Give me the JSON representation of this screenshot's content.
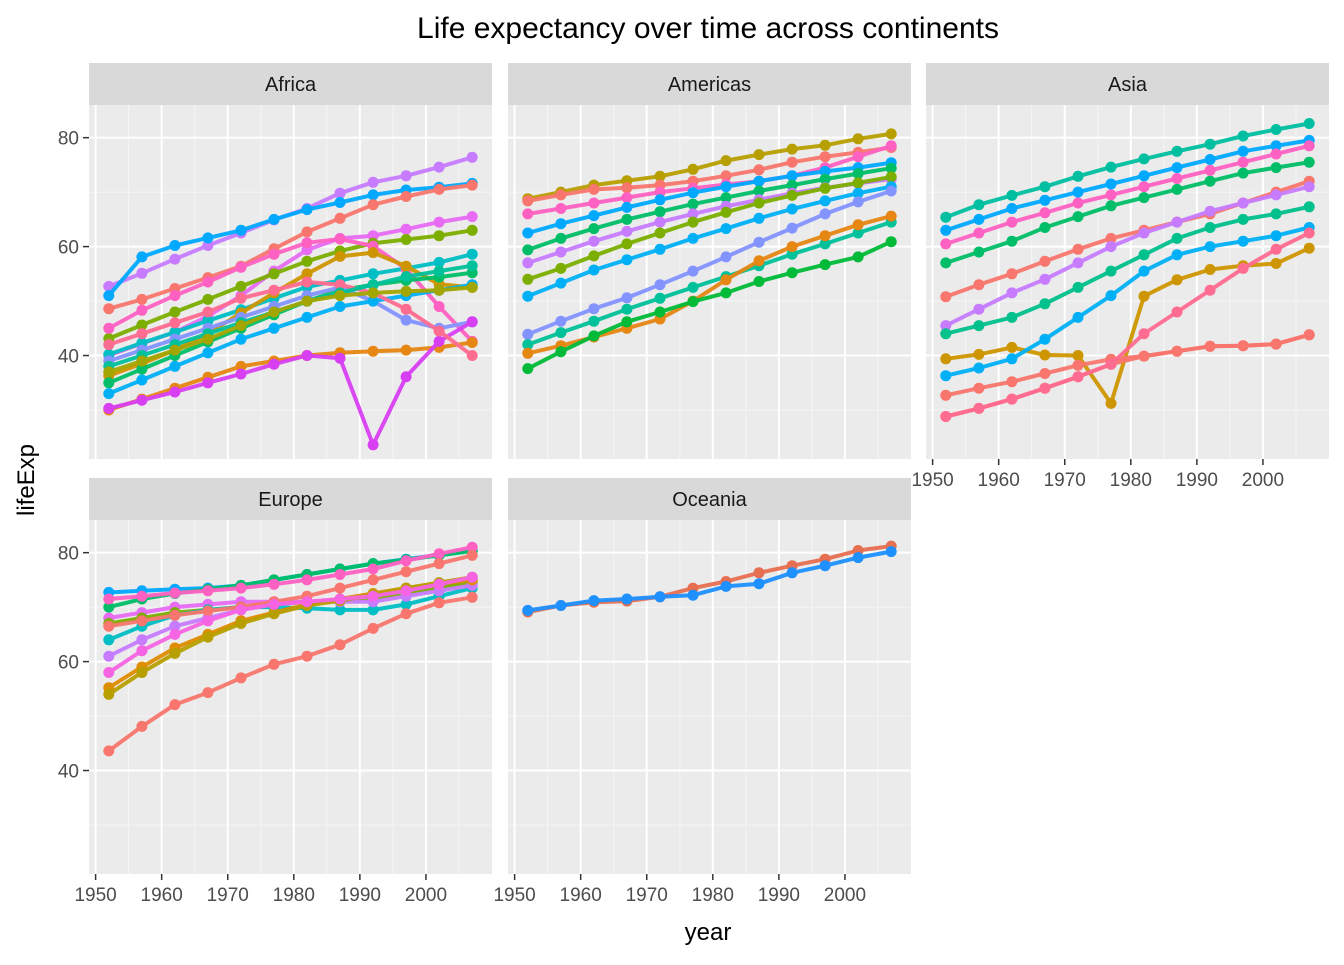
{
  "chart_data": {
    "type": "line",
    "title": "Life expectancy over time across continents",
    "xlabel": "year",
    "ylabel": "lifeExp",
    "xlim": [
      1949,
      2010
    ],
    "ylim": [
      21,
      86
    ],
    "x_ticks": [
      1950,
      1960,
      1970,
      1980,
      1990,
      2000
    ],
    "y_ticks": [
      40,
      60,
      80
    ],
    "grid": true,
    "legend": "none",
    "x": [
      1952,
      1957,
      1962,
      1967,
      1972,
      1977,
      1982,
      1987,
      1992,
      1997,
      2002,
      2007
    ],
    "facets": [
      {
        "name": "Africa",
        "series": [
          {
            "color": "#C77CFF",
            "values": [
              52.7,
              55.1,
              57.7,
              60.2,
              62.5,
              64.9,
              67.0,
              69.8,
              71.8,
              73.0,
              74.6,
              76.4
            ]
          },
          {
            "color": "#00A9FF",
            "values": [
              51.0,
              58.1,
              60.2,
              61.6,
              63.0,
              65.0,
              66.8,
              68.1,
              69.5,
              70.4,
              70.9,
              71.6
            ]
          },
          {
            "color": "#F8766D",
            "values": [
              48.6,
              50.3,
              52.3,
              54.3,
              56.4,
              59.6,
              62.7,
              65.2,
              67.7,
              69.2,
              70.5,
              71.3
            ]
          },
          {
            "color": "#E76BF3",
            "values": [
              40.0,
              42.2,
              44.3,
              47.2,
              51.0,
              55.5,
              59.4,
              61.5,
              62.0,
              63.2,
              64.5,
              65.5
            ]
          },
          {
            "color": "#7CAE00",
            "values": [
              43.1,
              45.6,
              48.0,
              50.3,
              52.7,
              55.0,
              57.3,
              59.2,
              60.6,
              61.3,
              62.0,
              63.0
            ]
          },
          {
            "color": "#00BFC4",
            "values": [
              40.2,
              42.3,
              44.3,
              46.4,
              48.4,
              50.5,
              52.6,
              53.8,
              55.0,
              56.0,
              57.1,
              58.6
            ]
          },
          {
            "color": "#FF61C3",
            "values": [
              45.0,
              48.3,
              51.0,
              53.5,
              56.2,
              58.6,
              60.7,
              61.4,
              60.1,
              55.9,
              49.0,
              42.6
            ]
          },
          {
            "color": "#CD9600",
            "values": [
              36.3,
              38.5,
              41.0,
              44.0,
              47.8,
              51.5,
              55.0,
              58.2,
              58.9,
              56.4,
              53.1,
              52.5
            ]
          },
          {
            "color": "#00BE67",
            "values": [
              35.0,
              37.5,
              40.0,
              42.5,
              45.0,
              47.5,
              50.0,
              52.0,
              53.0,
              53.8,
              54.4,
              55.2
            ]
          },
          {
            "color": "#8494FF",
            "values": [
              39.0,
              41.0,
              43.0,
              45.0,
              47.0,
              49.0,
              51.0,
              52.5,
              50.0,
              46.5,
              45.0,
              46.2
            ]
          },
          {
            "color": "#00B0F6",
            "values": [
              33.0,
              35.5,
              38.0,
              40.5,
              43.0,
              45.0,
              47.0,
              49.0,
              50.0,
              51.0,
              52.0,
              53.0
            ]
          },
          {
            "color": "#E68613",
            "values": [
              30.0,
              32.0,
              34.0,
              36.0,
              38.0,
              39.0,
              40.0,
              40.5,
              40.8,
              41.0,
              41.5,
              42.4
            ]
          },
          {
            "color": "#D83FF2",
            "values": [
              30.3,
              31.8,
              33.3,
              35.0,
              36.6,
              38.4,
              40.0,
              39.5,
              23.6,
              36.1,
              42.6,
              46.2
            ]
          },
          {
            "color": "#FF6C91",
            "values": [
              42.0,
              44.0,
              46.0,
              48.0,
              50.5,
              52.0,
              53.5,
              53.0,
              51.5,
              48.5,
              44.5,
              40.0
            ]
          },
          {
            "color": "#00C19A",
            "values": [
              38.0,
              40.0,
              42.0,
              44.0,
              46.0,
              48.0,
              50.0,
              51.5,
              53.0,
              54.5,
              55.5,
              56.5
            ]
          },
          {
            "color": "#A3A500",
            "values": [
              37.0,
              39.0,
              41.0,
              43.0,
              45.5,
              48.0,
              50.0,
              51.0,
              51.5,
              51.8,
              52.0,
              52.5
            ]
          }
        ]
      },
      {
        "name": "Americas",
        "series": [
          {
            "color": "#B79F00",
            "values": [
              68.8,
              70.0,
              71.3,
              72.1,
              72.9,
              74.2,
              75.8,
              76.9,
              77.9,
              78.6,
              79.8,
              80.7
            ]
          },
          {
            "color": "#F8766D",
            "values": [
              68.4,
              69.5,
              70.5,
              70.8,
              71.3,
              72.0,
              73.0,
              74.1,
              75.5,
              76.5,
              77.3,
              78.2
            ]
          },
          {
            "color": "#FF61C3",
            "values": [
              66.0,
              67.0,
              68.0,
              69.0,
              70.0,
              70.7,
              71.4,
              72.0,
              73.0,
              74.5,
              76.5,
              78.5
            ]
          },
          {
            "color": "#00A9FF",
            "values": [
              62.5,
              64.2,
              65.7,
              67.2,
              68.6,
              69.9,
              71.0,
              72.0,
              73.0,
              73.8,
              74.5,
              75.4
            ]
          },
          {
            "color": "#00BE67",
            "values": [
              59.4,
              61.5,
              63.3,
              65.0,
              66.4,
              67.8,
              69.0,
              70.2,
              71.3,
              72.4,
              73.4,
              74.4
            ]
          },
          {
            "color": "#C77CFF",
            "values": [
              57.0,
              59.0,
              61.0,
              62.8,
              64.5,
              66.0,
              67.4,
              68.6,
              69.8,
              70.8,
              71.6,
              72.4
            ]
          },
          {
            "color": "#7CAE00",
            "values": [
              54.0,
              56.0,
              58.3,
              60.5,
              62.5,
              64.5,
              66.3,
              68.0,
              69.4,
              70.7,
              71.7,
              72.8
            ]
          },
          {
            "color": "#00B0F6",
            "values": [
              50.9,
              53.3,
              55.7,
              57.6,
              59.5,
              61.5,
              63.3,
              65.2,
              66.9,
              68.4,
              69.8,
              71.0
            ]
          },
          {
            "color": "#8494FF",
            "values": [
              43.9,
              46.3,
              48.6,
              50.6,
              53.0,
              55.5,
              58.1,
              60.8,
              63.4,
              66.0,
              68.2,
              70.2
            ]
          },
          {
            "color": "#00C19A",
            "values": [
              42.0,
              44.2,
              46.3,
              48.5,
              50.5,
              52.5,
              54.5,
              56.5,
              58.6,
              60.5,
              62.5,
              64.5
            ]
          },
          {
            "color": "#E68613",
            "values": [
              40.4,
              41.8,
              43.4,
              45.0,
              46.7,
              50.0,
              53.9,
              57.4,
              60.0,
              62.0,
              64.0,
              65.6
            ]
          },
          {
            "color": "#00BA38",
            "values": [
              37.6,
              40.7,
              43.6,
              46.2,
              48.0,
              49.9,
              51.5,
              53.6,
              55.2,
              56.7,
              58.1,
              60.9
            ]
          }
        ]
      },
      {
        "name": "Asia",
        "series": [
          {
            "color": "#00BFA0",
            "values": [
              65.4,
              67.7,
              69.4,
              71.0,
              72.9,
              74.6,
              76.1,
              77.5,
              78.8,
              80.3,
              81.5,
              82.6
            ]
          },
          {
            "color": "#00A9FF",
            "values": [
              63.0,
              65.0,
              67.0,
              68.5,
              70.0,
              71.5,
              73.0,
              74.5,
              76.0,
              77.5,
              78.5,
              79.5
            ]
          },
          {
            "color": "#FF61C3",
            "values": [
              60.5,
              62.5,
              64.5,
              66.2,
              68.0,
              69.5,
              71.0,
              72.5,
              74.0,
              75.5,
              77.0,
              78.5
            ]
          },
          {
            "color": "#00BE67",
            "values": [
              57.0,
              59.0,
              61.0,
              63.5,
              65.5,
              67.5,
              69.0,
              70.5,
              72.0,
              73.5,
              74.5,
              75.5
            ]
          },
          {
            "color": "#F8766D",
            "values": [
              50.8,
              53.0,
              55.0,
              57.3,
              59.5,
              61.5,
              63.0,
              64.5,
              66.0,
              68.0,
              70.0,
              72.0
            ]
          },
          {
            "color": "#C77CFF",
            "values": [
              45.5,
              48.5,
              51.5,
              54.0,
              57.0,
              60.0,
              62.5,
              64.5,
              66.5,
              68.0,
              69.5,
              71.0
            ]
          },
          {
            "color": "#00C08B",
            "values": [
              44.0,
              45.5,
              47.0,
              49.5,
              52.5,
              55.5,
              58.5,
              61.5,
              63.5,
              65.0,
              66.0,
              67.3
            ]
          },
          {
            "color": "#CD9600",
            "values": [
              39.4,
              40.2,
              41.5,
              40.1,
              40.0,
              31.2,
              50.9,
              53.9,
              55.8,
              56.5,
              56.9,
              59.7
            ]
          },
          {
            "color": "#00B0F6",
            "values": [
              36.3,
              37.7,
              39.4,
              43.0,
              47.0,
              51.0,
              55.5,
              58.5,
              60.0,
              61.0,
              62.0,
              63.5
            ]
          },
          {
            "color": "#F8766D",
            "values": [
              32.7,
              34.0,
              35.2,
              36.7,
              38.2,
              39.3,
              39.9,
              40.8,
              41.7,
              41.8,
              42.1,
              43.8
            ]
          },
          {
            "color": "#F8766D",
            "values": [
              28.8,
              30.3,
              32.0,
              34.0,
              36.1,
              38.4,
              39.9,
              40.8,
              41.7,
              41.8,
              42.1,
              43.8
            ]
          },
          {
            "color": "#FF6C91",
            "values": [
              28.8,
              30.3,
              32.0,
              34.0,
              36.1,
              38.4,
              44.0,
              48.0,
              52.0,
              56.0,
              59.5,
              62.5
            ]
          }
        ]
      },
      {
        "name": "Europe",
        "series": [
          {
            "color": "#00A9FF",
            "values": [
              72.7,
              73.0,
              73.3,
              73.5,
              74.0,
              75.0,
              76.0,
              77.0,
              78.0,
              78.8,
              79.6,
              80.5
            ]
          },
          {
            "color": "#00BE67",
            "values": [
              70.0,
              71.5,
              72.5,
              73.3,
              74.0,
              75.0,
              76.0,
              77.0,
              78.0,
              78.7,
              79.5,
              80.3
            ]
          },
          {
            "color": "#FF61C3",
            "values": [
              71.5,
              72.0,
              72.6,
              73.0,
              73.5,
              74.2,
              75.0,
              76.0,
              77.0,
              78.5,
              79.8,
              81.0
            ]
          },
          {
            "color": "#E76BF3",
            "values": [
              68.0,
              69.0,
              70.0,
              70.5,
              71.0,
              71.0,
              71.0,
              71.3,
              72.0,
              73.0,
              74.0,
              75.0
            ]
          },
          {
            "color": "#7CAE00",
            "values": [
              67.0,
              68.0,
              69.0,
              69.5,
              70.0,
              70.5,
              71.0,
              71.3,
              71.5,
              72.5,
              73.5,
              74.5
            ]
          },
          {
            "color": "#00BFC4",
            "values": [
              64.0,
              66.5,
              68.5,
              69.5,
              70.0,
              70.0,
              69.8,
              69.5,
              69.5,
              70.5,
              72.0,
              73.5
            ]
          },
          {
            "color": "#C77CFF",
            "values": [
              61.0,
              64.0,
              66.5,
              68.0,
              69.5,
              70.5,
              71.0,
              71.0,
              71.0,
              72.0,
              73.0,
              74.0
            ]
          },
          {
            "color": "#DE8C00",
            "values": [
              55.2,
              59.0,
              62.5,
              65.0,
              67.5,
              69.0,
              70.5,
              71.5,
              72.5,
              73.5,
              74.3,
              75.0
            ]
          },
          {
            "color": "#B79F00",
            "values": [
              54.0,
              58.0,
              61.5,
              64.5,
              67.0,
              68.8,
              70.3,
              71.2,
              72.3,
              73.5,
              74.5,
              75.5
            ]
          },
          {
            "color": "#F8766D",
            "values": [
              66.5,
              67.5,
              68.5,
              69.3,
              70.0,
              71.0,
              72.0,
              73.5,
              75.0,
              76.5,
              78.0,
              79.5
            ]
          },
          {
            "color": "#F564E3",
            "values": [
              58.0,
              62.0,
              65.0,
              67.5,
              69.5,
              70.5,
              71.0,
              71.5,
              72.0,
              73.0,
              74.2,
              75.5
            ]
          },
          {
            "color": "#F8766D",
            "values": [
              43.6,
              48.1,
              52.1,
              54.3,
              57.0,
              59.5,
              61.0,
              63.1,
              66.1,
              68.8,
              70.8,
              71.8
            ]
          }
        ]
      },
      {
        "name": "Oceania",
        "series": [
          {
            "color": "#E76F51",
            "values": [
              69.1,
              70.3,
              70.9,
              71.1,
              71.9,
              73.5,
              74.7,
              76.3,
              77.6,
              78.8,
              80.4,
              81.2
            ]
          },
          {
            "color": "#1E90FF",
            "values": [
              69.4,
              70.3,
              71.2,
              71.5,
              71.9,
              72.2,
              73.8,
              74.3,
              76.3,
              77.6,
              79.1,
              80.2
            ]
          }
        ]
      }
    ]
  }
}
